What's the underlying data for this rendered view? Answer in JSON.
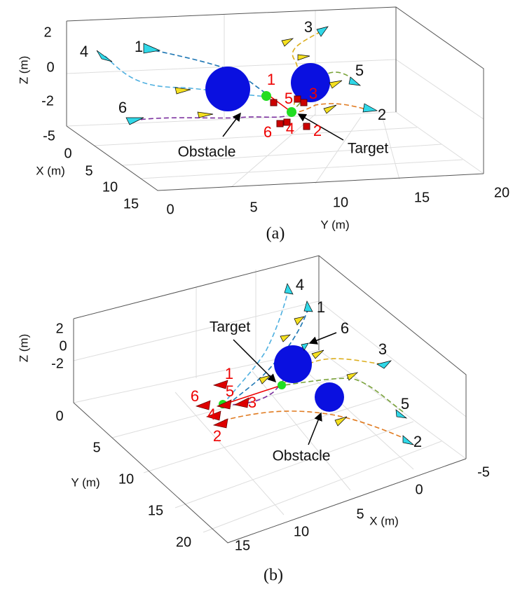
{
  "panel_a": {
    "caption": "(a)",
    "x_axis_label": "X (m)",
    "y_axis_label": "Y (m)",
    "z_axis_label": "Z (m)",
    "x_ticks": [
      "-5",
      "0",
      "5",
      "10",
      "15"
    ],
    "y_ticks": [
      "0",
      "5",
      "10",
      "15",
      "20"
    ],
    "z_ticks": [
      "2",
      "0",
      "-2"
    ],
    "obstacle_label": "Obstacle",
    "target_label": "Target",
    "start_labels": [
      "1",
      "2",
      "3",
      "4",
      "5",
      "6"
    ],
    "end_labels": [
      "1",
      "2",
      "3",
      "4",
      "5",
      "6"
    ]
  },
  "panel_b": {
    "caption": "(b)",
    "x_axis_label": "X (m)",
    "y_axis_label": "Y (m)",
    "z_axis_label": "Z (m)",
    "x_ticks": [
      "15",
      "10",
      "5",
      "0",
      "-5"
    ],
    "y_ticks": [
      "0",
      "5",
      "10",
      "15",
      "20"
    ],
    "z_ticks": [
      "2",
      "0",
      "-2"
    ],
    "obstacle_label": "Obstacle",
    "target_label": "Target",
    "start_labels": [
      "1",
      "2",
      "3",
      "4",
      "5",
      "6"
    ],
    "end_labels": [
      "1",
      "2",
      "3",
      "4",
      "5",
      "6"
    ]
  }
}
